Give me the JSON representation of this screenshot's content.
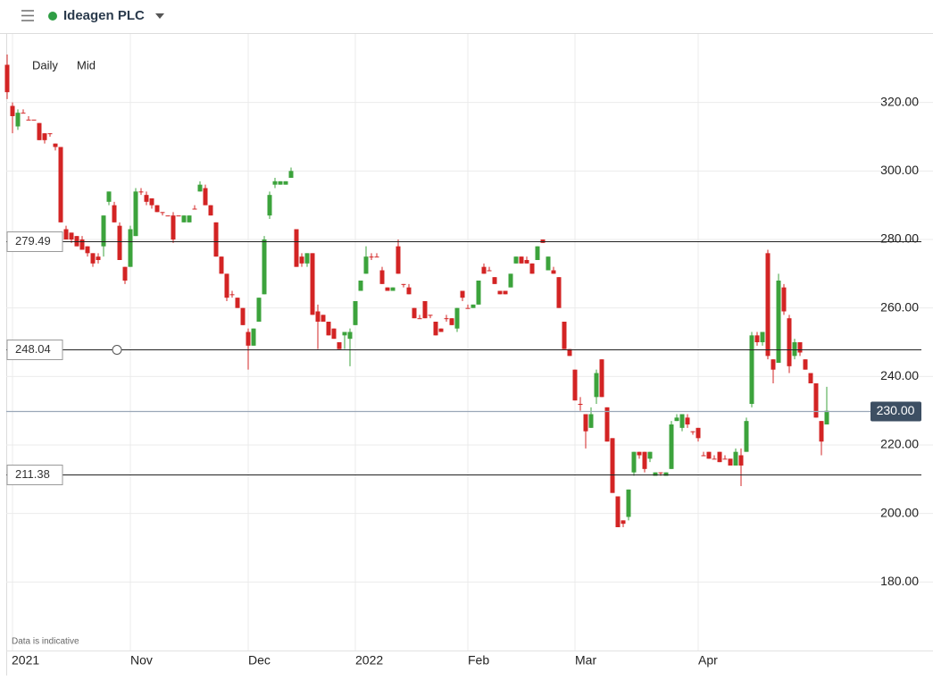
{
  "header": {
    "title": "Ideagen PLC"
  },
  "chart_data": {
    "type": "candlestick",
    "interval": "Daily",
    "price_type": "Mid",
    "note": "Data is indicative",
    "up_color": "#3ca33c",
    "down_color": "#d32424",
    "grid": true,
    "ylim": [
      160,
      340
    ],
    "yticks": [
      {
        "value": 180,
        "label": "180.00"
      },
      {
        "value": 200,
        "label": "200.00"
      },
      {
        "value": 220,
        "label": "220.00"
      },
      {
        "value": 240,
        "label": "240.00"
      },
      {
        "value": 260,
        "label": "260.00"
      },
      {
        "value": 280,
        "label": "280.00"
      },
      {
        "value": 300,
        "label": "300.00"
      },
      {
        "value": 320,
        "label": "320.00"
      }
    ],
    "levels": [
      279.49,
      248.04,
      211.38
    ],
    "current": {
      "value": 230,
      "label": "230.00"
    },
    "categories": [
      null,
      "2021",
      null,
      null,
      null,
      null,
      null,
      null,
      null,
      null,
      null,
      null,
      null,
      null,
      null,
      null,
      null,
      null,
      null,
      null,
      null,
      null,
      null,
      "Nov",
      null,
      null,
      null,
      null,
      null,
      null,
      null,
      null,
      null,
      null,
      null,
      null,
      null,
      null,
      null,
      null,
      null,
      null,
      null,
      null,
      null,
      "Dec",
      null,
      null,
      null,
      null,
      null,
      null,
      null,
      null,
      null,
      null,
      null,
      null,
      null,
      null,
      null,
      null,
      null,
      null,
      null,
      "2022",
      null,
      null,
      null,
      null,
      null,
      null,
      null,
      null,
      null,
      null,
      null,
      null,
      null,
      null,
      null,
      null,
      null,
      null,
      null,
      null,
      "Feb",
      null,
      null,
      null,
      null,
      null,
      null,
      null,
      null,
      null,
      null,
      null,
      null,
      null,
      null,
      null,
      null,
      null,
      null,
      null,
      "Mar",
      null,
      null,
      null,
      null,
      null,
      null,
      null,
      null,
      null,
      null,
      null,
      null,
      null,
      null,
      null,
      null,
      null,
      null,
      null,
      null,
      null,
      null,
      "Apr",
      null,
      null,
      null,
      null,
      null,
      null,
      null,
      null,
      null,
      null,
      null,
      null,
      null,
      null,
      null,
      null,
      null,
      null,
      null,
      null,
      null,
      null,
      null,
      null
    ],
    "open": [
      331,
      319,
      313,
      317,
      315,
      315,
      314,
      311,
      311,
      308,
      307,
      283,
      282,
      281,
      280,
      278,
      276,
      275,
      278,
      291,
      290,
      284,
      272,
      272,
      281,
      294,
      293,
      292,
      290,
      288,
      287,
      287,
      287,
      285,
      285,
      289,
      294,
      295,
      290,
      285,
      275,
      270,
      264,
      263,
      260,
      253,
      249,
      256,
      264,
      287,
      296,
      296,
      296,
      298,
      283,
      275,
      273,
      276,
      259,
      258,
      256,
      254,
      250,
      252,
      251,
      255,
      265,
      270,
      275,
      275,
      271,
      266,
      265,
      278,
      267,
      266,
      260,
      257,
      262,
      258,
      256,
      254,
      257,
      257,
      254,
      265,
      260,
      260,
      261,
      272,
      271,
      269,
      265,
      265,
      266,
      273,
      275,
      274,
      273,
      274,
      280,
      271,
      271,
      269,
      256,
      248,
      242,
      232,
      229,
      225,
      234,
      245,
      231,
      222,
      205,
      198,
      199,
      212,
      218,
      218,
      216,
      211,
      212,
      211,
      213,
      227,
      225,
      228,
      224,
      225,
      217,
      218,
      216,
      218,
      216,
      216,
      214,
      217,
      218,
      232,
      252,
      250,
      276,
      245,
      244,
      266,
      257,
      246,
      250,
      245,
      241,
      238,
      227,
      226
    ],
    "high": [
      334,
      320,
      318,
      318,
      316,
      315,
      314,
      311,
      311,
      308,
      307,
      284,
      282,
      281,
      281,
      278,
      276,
      276,
      287,
      294,
      291,
      285,
      272,
      284,
      295,
      295,
      294,
      292,
      290,
      288,
      287,
      288,
      287,
      287,
      287,
      290,
      297,
      296,
      290,
      285,
      275,
      270,
      265,
      263,
      260,
      254,
      254,
      263,
      281,
      294,
      298,
      297,
      297,
      301,
      283,
      276,
      276,
      276,
      261,
      258,
      256,
      254,
      250,
      253,
      254,
      262,
      268,
      278,
      276,
      276,
      272,
      266,
      266,
      280,
      267,
      267,
      260,
      258,
      262,
      258,
      256,
      254,
      258,
      257,
      260,
      265,
      261,
      261,
      268,
      273,
      272,
      269,
      265,
      265,
      270,
      275,
      275,
      275,
      273,
      278,
      280,
      275,
      272,
      269,
      256,
      248,
      242,
      234,
      229,
      231,
      242,
      245,
      231,
      222,
      205,
      198,
      207,
      218,
      218,
      218,
      218,
      212,
      212,
      212,
      227,
      229,
      229,
      229,
      224,
      225,
      218,
      218,
      217,
      218,
      217,
      216,
      219,
      219,
      228,
      253,
      253,
      253,
      277,
      245,
      270,
      267,
      258,
      251,
      250,
      245,
      241,
      238,
      227,
      237
    ],
    "low": [
      321,
      311,
      312,
      317,
      315,
      315,
      309,
      308,
      310,
      306,
      285,
      280,
      279,
      278,
      277,
      275,
      272,
      273,
      275,
      290,
      285,
      274,
      267,
      272,
      281,
      293,
      290,
      289,
      288,
      287,
      287,
      279,
      287,
      285,
      285,
      289,
      294,
      290,
      287,
      275,
      270,
      262,
      263,
      260,
      255,
      242,
      249,
      256,
      264,
      286,
      295,
      296,
      296,
      298,
      272,
      272,
      272,
      258,
      248,
      256,
      252,
      251,
      248,
      248,
      243,
      255,
      265,
      270,
      274,
      275,
      267,
      265,
      265,
      270,
      266,
      264,
      257,
      257,
      257,
      257,
      252,
      253,
      256,
      255,
      253,
      262,
      260,
      260,
      261,
      270,
      271,
      267,
      264,
      264,
      266,
      273,
      273,
      273,
      270,
      274,
      279,
      271,
      270,
      260,
      248,
      246,
      233,
      230,
      219,
      225,
      232,
      234,
      221,
      206,
      196,
      196,
      198,
      211,
      216,
      212,
      215,
      211,
      211,
      211,
      213,
      227,
      224,
      225,
      223,
      221,
      217,
      216,
      216,
      215,
      216,
      214,
      214,
      208,
      218,
      231,
      249,
      249,
      245,
      238,
      244,
      258,
      241,
      245,
      246,
      242,
      238,
      228,
      217,
      226
    ],
    "close": [
      323,
      316,
      317,
      317,
      315,
      315,
      309,
      309,
      311,
      307,
      285,
      280,
      280,
      278,
      277,
      276,
      273,
      274,
      287,
      294,
      285,
      274,
      268,
      283,
      294,
      294,
      291,
      290,
      288,
      288,
      287,
      280,
      287,
      287,
      287,
      289,
      296,
      290,
      287,
      275,
      270,
      263,
      264,
      260,
      255,
      249,
      254,
      263,
      280,
      293,
      297,
      297,
      297,
      300,
      272,
      273,
      276,
      258,
      256,
      256,
      252,
      251,
      248,
      253,
      253,
      262,
      268,
      275,
      275,
      275,
      267,
      265,
      266,
      270,
      267,
      264,
      257,
      257,
      257,
      258,
      252,
      253,
      257,
      255,
      260,
      263,
      260,
      261,
      268,
      270,
      271,
      267,
      264,
      264,
      270,
      275,
      273,
      273,
      270,
      278,
      279,
      275,
      270,
      260,
      248,
      246,
      233,
      232,
      224,
      229,
      241,
      234,
      221,
      206,
      196,
      197,
      207,
      218,
      217,
      213,
      218,
      212,
      212,
      212,
      226,
      228,
      229,
      226,
      224,
      222,
      217,
      216,
      216,
      215,
      216,
      214,
      218,
      214,
      227,
      252,
      250,
      253,
      246,
      242,
      268,
      259,
      243,
      250,
      247,
      242,
      238,
      228,
      221,
      230
    ]
  }
}
